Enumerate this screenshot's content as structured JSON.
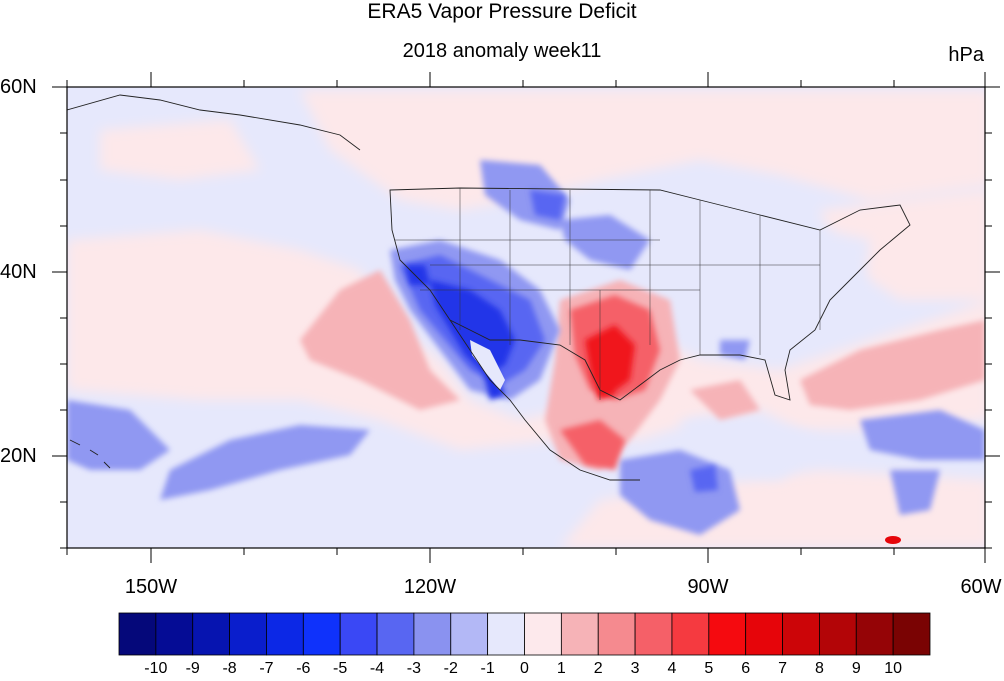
{
  "title": "ERA5 Vapor Pressure Deficit",
  "subtitle": "2018 anomaly week11",
  "units": "hPa",
  "map": {
    "lat_range": [
      10,
      60
    ],
    "lon_range": [
      -160,
      -60
    ],
    "lat_labels": [
      "60N",
      "40N",
      "20N"
    ],
    "lon_labels": [
      "150W",
      "120W",
      "90W",
      "60W"
    ],
    "regions": [
      {
        "name": "north-pacific-light-blue",
        "level": -1,
        "color": "#e6e8fc"
      },
      {
        "name": "east-pacific-light-pink",
        "level": 1,
        "color": "#fde8ea"
      },
      {
        "name": "southwest-us-dark-blue",
        "level": -5,
        "color": "#2434e8"
      },
      {
        "name": "texas-mexico-red",
        "level": 5,
        "color": "#f0141e"
      },
      {
        "name": "tropical-pacific-blue-band",
        "level": -3,
        "color": "#9098f2"
      }
    ]
  },
  "colorbar": {
    "labels": [
      "-10",
      "-9",
      "-8",
      "-7",
      "-6",
      "-5",
      "-4",
      "-3",
      "-2",
      "-1",
      "0",
      "1",
      "2",
      "3",
      "4",
      "5",
      "6",
      "7",
      "8",
      "9",
      "10"
    ],
    "colors": [
      "#05087a",
      "#050c95",
      "#0614b0",
      "#0a1ecc",
      "#0c28e6",
      "#0f32fb",
      "#3a48f5",
      "#5866f2",
      "#8a92f0",
      "#b3b8f6",
      "#e6e8fc",
      "#fde9ec",
      "#f6b3b7",
      "#f58a8f",
      "#f56068",
      "#f53a40",
      "#f50a0f",
      "#e6050a",
      "#cc0508",
      "#b30507",
      "#950406",
      "#7a0303"
    ]
  }
}
